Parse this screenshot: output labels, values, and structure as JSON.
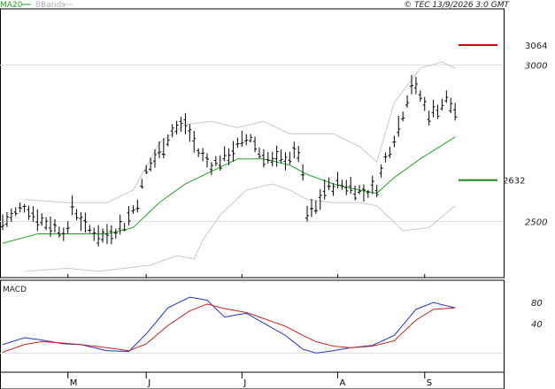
{
  "header": {
    "ma_label": "MA20",
    "bb_label": "BBands",
    "copyright": "© TEC 13/9/2026 3:0 GMT"
  },
  "colors": {
    "price": "#000000",
    "ma": "#1fa31f",
    "bands": "#c8c8c8",
    "resistance": "#cc0000",
    "support": "#1a8a1a",
    "macd": "#1f35cc",
    "signal": "#cc1f1f",
    "grid": "#dddddd"
  },
  "chart_data": [
    {
      "type": "line",
      "panel": "price",
      "ylim": [
        2320,
        3180
      ],
      "y_ticks": [
        {
          "value": 3000,
          "label": "3000"
        },
        {
          "value": 2500,
          "label": "2500"
        }
      ],
      "x_month_labels": [
        {
          "day": 15,
          "label": "M"
        },
        {
          "day": 33,
          "label": "J"
        },
        {
          "day": 55,
          "label": "J"
        },
        {
          "day": 77,
          "label": "A"
        },
        {
          "day": 97,
          "label": "S"
        }
      ],
      "x_range": [
        0,
        118
      ],
      "levels": [
        {
          "name": "resistance",
          "value": 3064,
          "label": "3064"
        },
        {
          "name": "support",
          "value": 2632,
          "label": "2632"
        }
      ],
      "ohlc_anchors": [
        [
          0,
          2495
        ],
        [
          3,
          2525
        ],
        [
          5,
          2550
        ],
        [
          8,
          2510
        ],
        [
          12,
          2480
        ],
        [
          15,
          2465
        ],
        [
          16,
          2550
        ],
        [
          19,
          2480
        ],
        [
          23,
          2450
        ],
        [
          25,
          2465
        ],
        [
          28,
          2490
        ],
        [
          31,
          2560
        ],
        [
          33,
          2660
        ],
        [
          36,
          2720
        ],
        [
          39,
          2790
        ],
        [
          42,
          2810
        ],
        [
          45,
          2720
        ],
        [
          48,
          2680
        ],
        [
          51,
          2700
        ],
        [
          54,
          2740
        ],
        [
          57,
          2770
        ],
        [
          59,
          2720
        ],
        [
          62,
          2690
        ],
        [
          65,
          2700
        ],
        [
          68,
          2720
        ],
        [
          69,
          2640
        ],
        [
          70,
          2520
        ],
        [
          72,
          2540
        ],
        [
          74,
          2600
        ],
        [
          77,
          2620
        ],
        [
          80,
          2610
        ],
        [
          83,
          2590
        ],
        [
          86,
          2610
        ],
        [
          88,
          2700
        ],
        [
          91,
          2800
        ],
        [
          94,
          2940
        ],
        [
          96,
          2900
        ],
        [
          98,
          2840
        ],
        [
          100,
          2860
        ],
        [
          102,
          2890
        ],
        [
          104,
          2850
        ]
      ],
      "ma20_anchors": [
        [
          0,
          2430
        ],
        [
          8,
          2460
        ],
        [
          15,
          2460
        ],
        [
          24,
          2460
        ],
        [
          30,
          2480
        ],
        [
          36,
          2560
        ],
        [
          42,
          2620
        ],
        [
          48,
          2660
        ],
        [
          54,
          2700
        ],
        [
          60,
          2700
        ],
        [
          66,
          2680
        ],
        [
          70,
          2650
        ],
        [
          76,
          2620
        ],
        [
          82,
          2600
        ],
        [
          86,
          2590
        ],
        [
          90,
          2640
        ],
        [
          96,
          2700
        ],
        [
          104,
          2770
        ]
      ],
      "bb_upper_anchors": [
        [
          5,
          2570
        ],
        [
          15,
          2560
        ],
        [
          24,
          2560
        ],
        [
          30,
          2600
        ],
        [
          36,
          2750
        ],
        [
          42,
          2810
        ],
        [
          48,
          2820
        ],
        [
          54,
          2800
        ],
        [
          60,
          2820
        ],
        [
          66,
          2780
        ],
        [
          70,
          2780
        ],
        [
          76,
          2780
        ],
        [
          82,
          2740
        ],
        [
          86,
          2690
        ],
        [
          90,
          2880
        ],
        [
          96,
          2990
        ],
        [
          101,
          3010
        ],
        [
          104,
          2990
        ]
      ],
      "bb_lower_anchors": [
        [
          5,
          2340
        ],
        [
          15,
          2350
        ],
        [
          22,
          2340
        ],
        [
          28,
          2350
        ],
        [
          34,
          2360
        ],
        [
          40,
          2390
        ],
        [
          44,
          2380
        ],
        [
          46,
          2440
        ],
        [
          50,
          2520
        ],
        [
          56,
          2600
        ],
        [
          62,
          2620
        ],
        [
          66,
          2600
        ],
        [
          70,
          2570
        ],
        [
          76,
          2560
        ],
        [
          82,
          2560
        ],
        [
          86,
          2550
        ],
        [
          92,
          2470
        ],
        [
          98,
          2480
        ],
        [
          104,
          2550
        ]
      ]
    },
    {
      "type": "line",
      "panel": "macd",
      "title": "MACD",
      "ylim": [
        -10,
        110
      ],
      "y_ticks": [
        {
          "value": 80,
          "label": "80"
        },
        {
          "value": 40,
          "label": "40"
        }
      ],
      "x_range": [
        0,
        118
      ],
      "series": [
        {
          "name": "macd",
          "anchors": [
            [
              0,
              26
            ],
            [
              5,
              35
            ],
            [
              9,
              32
            ],
            [
              14,
              27
            ],
            [
              18,
              26
            ],
            [
              24,
              18
            ],
            [
              29,
              17
            ],
            [
              33,
              40
            ],
            [
              38,
              74
            ],
            [
              43,
              88
            ],
            [
              47,
              84
            ],
            [
              51,
              62
            ],
            [
              56,
              67
            ],
            [
              60,
              54
            ],
            [
              65,
              38
            ],
            [
              69,
              20
            ],
            [
              72,
              15
            ],
            [
              76,
              18
            ],
            [
              80,
              22
            ],
            [
              85,
              25
            ],
            [
              90,
              38
            ],
            [
              95,
              72
            ],
            [
              99,
              81
            ],
            [
              104,
              74
            ]
          ]
        },
        {
          "name": "signal",
          "anchors": [
            [
              0,
              16
            ],
            [
              5,
              26
            ],
            [
              9,
              30
            ],
            [
              14,
              28
            ],
            [
              18,
              26
            ],
            [
              24,
              22
            ],
            [
              29,
              18
            ],
            [
              33,
              27
            ],
            [
              38,
              51
            ],
            [
              43,
              70
            ],
            [
              47,
              79
            ],
            [
              51,
              73
            ],
            [
              56,
              68
            ],
            [
              60,
              60
            ],
            [
              65,
              50
            ],
            [
              69,
              38
            ],
            [
              72,
              30
            ],
            [
              76,
              24
            ],
            [
              80,
              22
            ],
            [
              85,
              24
            ],
            [
              90,
              31
            ],
            [
              95,
              58
            ],
            [
              99,
              72
            ],
            [
              104,
              74
            ]
          ]
        }
      ]
    }
  ]
}
